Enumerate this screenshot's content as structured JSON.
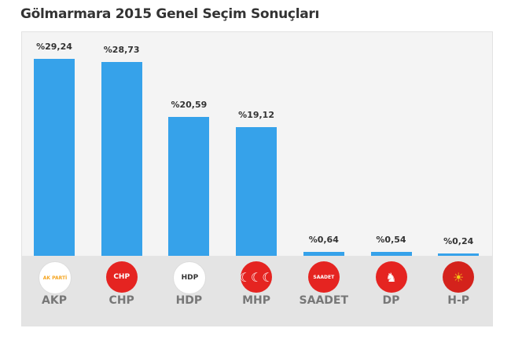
{
  "chart_data": {
    "type": "bar",
    "title": "Gölmarmara 2015 Genel Seçim Sonuçları",
    "categories": [
      "AKP",
      "CHP",
      "HDP",
      "MHP",
      "SAADET",
      "DP",
      "H-P"
    ],
    "values": [
      29.24,
      28.73,
      20.59,
      19.12,
      0.64,
      0.54,
      0.24
    ],
    "value_labels": [
      "%29,24",
      "%28,73",
      "%20,59",
      "%19,12",
      "%0,64",
      "%0,54",
      "%0,24"
    ],
    "xlabel": "",
    "ylabel": "",
    "ylim": [
      0,
      29.24
    ],
    "bar_color": "#36a2ea",
    "logos": [
      {
        "icon": "akp-logo-icon",
        "bg": "#ffffff",
        "fg": "#f5a623",
        "text": "AK PARTİ"
      },
      {
        "icon": "chp-logo-icon",
        "bg": "#e52421",
        "fg": "#ffffff",
        "text": "CHP"
      },
      {
        "icon": "hdp-logo-icon",
        "bg": "#ffffff",
        "fg": "#333333",
        "text": "HDP"
      },
      {
        "icon": "mhp-logo-icon",
        "bg": "#e52421",
        "fg": "#ffffff",
        "text": "☾☾☾"
      },
      {
        "icon": "saadet-logo-icon",
        "bg": "#e52421",
        "fg": "#ffffff",
        "text": "SAADET"
      },
      {
        "icon": "dp-logo-icon",
        "bg": "#e52421",
        "fg": "#ffffff",
        "text": "♞"
      },
      {
        "icon": "hp-logo-icon",
        "bg": "#d4221c",
        "fg": "#f5c518",
        "text": "☀"
      }
    ]
  }
}
